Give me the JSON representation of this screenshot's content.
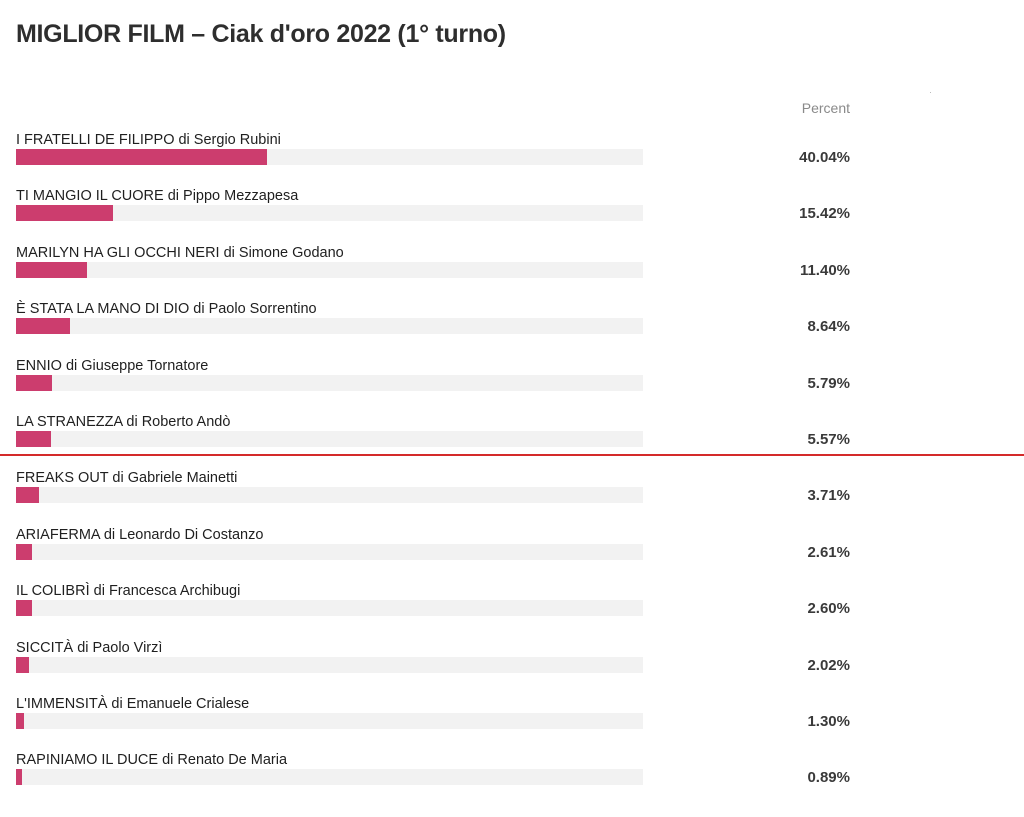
{
  "title": "MIGLIOR FILM – Ciak d'oro 2022 (1° turno)",
  "column_header": "Percent",
  "colors": {
    "bar": "#cc3d6e",
    "track": "#f2f2f2",
    "cutoff_line": "#d42a2a"
  },
  "chart_data": {
    "type": "bar",
    "orientation": "horizontal",
    "title": "MIGLIOR FILM – Ciak d'oro 2022 (1° turno)",
    "value_header": "Percent",
    "xlim": [
      0,
      100
    ],
    "categories": [
      "I FRATELLI DE FILIPPO di Sergio Rubini",
      "TI MANGIO IL CUORE di Pippo Mezzapesa",
      "MARILYN HA GLI OCCHI NERI di Simone Godano",
      "È STATA LA MANO DI DIO di Paolo Sorrentino",
      "ENNIO di Giuseppe Tornatore",
      "LA STRANEZZA di Roberto Andò",
      "FREAKS OUT di Gabriele Mainetti",
      "ARIAFERMA di Leonardo Di Costanzo",
      "IL COLIBRÌ di Francesca Archibugi",
      "SICCITÀ di Paolo Virzì",
      "L'IMMENSITÀ di Emanuele Crialese",
      "RAPINIAMO IL DUCE di Renato De Maria"
    ],
    "values": [
      40.04,
      15.42,
      11.4,
      8.64,
      5.79,
      5.57,
      3.71,
      2.61,
      2.6,
      2.02,
      1.3,
      0.89
    ],
    "value_labels": [
      "40.04%",
      "15.42%",
      "11.40%",
      "8.64%",
      "5.79%",
      "5.57%",
      "3.71%",
      "2.61%",
      "2.60%",
      "2.02%",
      "1.30%",
      "0.89%"
    ],
    "cutoff_after_index": 5,
    "grid": false
  }
}
